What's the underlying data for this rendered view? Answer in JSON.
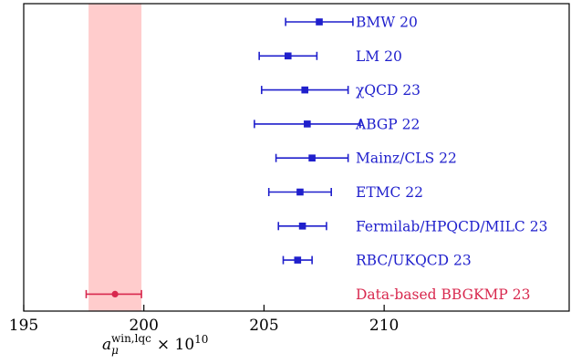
{
  "chart_data": {
    "type": "scatter",
    "subtype": "forest-plot-with-error-bars",
    "xlabel_base": "a",
    "xlabel_sub": "μ",
    "xlabel_sup": "win,lqc",
    "xlabel_suffix": "× 10",
    "xlabel_exp": "10",
    "xlim": [
      195,
      217.7
    ],
    "xticks": [
      195,
      200,
      205,
      210
    ],
    "xtick_labels": [
      "195",
      "200",
      "205",
      "210"
    ],
    "band": {
      "x0": 197.7,
      "x1": 199.9,
      "color": "#ffcccc"
    },
    "colors": {
      "lattice": "#1f1fcc",
      "data": "#d8284e",
      "axis": "#000000"
    },
    "points": [
      {
        "label": "BMW 20",
        "value": 207.3,
        "lower": 205.9,
        "upper": 208.7,
        "group": "lattice"
      },
      {
        "label": "LM 20",
        "value": 206.0,
        "lower": 204.8,
        "upper": 207.2,
        "group": "lattice"
      },
      {
        "label": "χQCD 23",
        "value": 206.7,
        "lower": 204.9,
        "upper": 208.5,
        "group": "lattice"
      },
      {
        "label": "ABGP 22",
        "value": 206.8,
        "lower": 204.6,
        "upper": 209.0,
        "group": "lattice"
      },
      {
        "label": "Mainz/CLS 22",
        "value": 207.0,
        "lower": 205.5,
        "upper": 208.5,
        "group": "lattice"
      },
      {
        "label": "ETMC 22",
        "value": 206.5,
        "lower": 205.2,
        "upper": 207.8,
        "group": "lattice"
      },
      {
        "label": "Fermilab/HPQCD/MILC 23",
        "value": 206.6,
        "lower": 205.6,
        "upper": 207.6,
        "group": "lattice"
      },
      {
        "label": "RBC/UKQCD 23",
        "value": 206.4,
        "lower": 205.8,
        "upper": 207.0,
        "group": "lattice"
      },
      {
        "label": "Data-based BBGKMP 23",
        "value": 198.8,
        "lower": 197.6,
        "upper": 199.9,
        "group": "data"
      }
    ]
  }
}
